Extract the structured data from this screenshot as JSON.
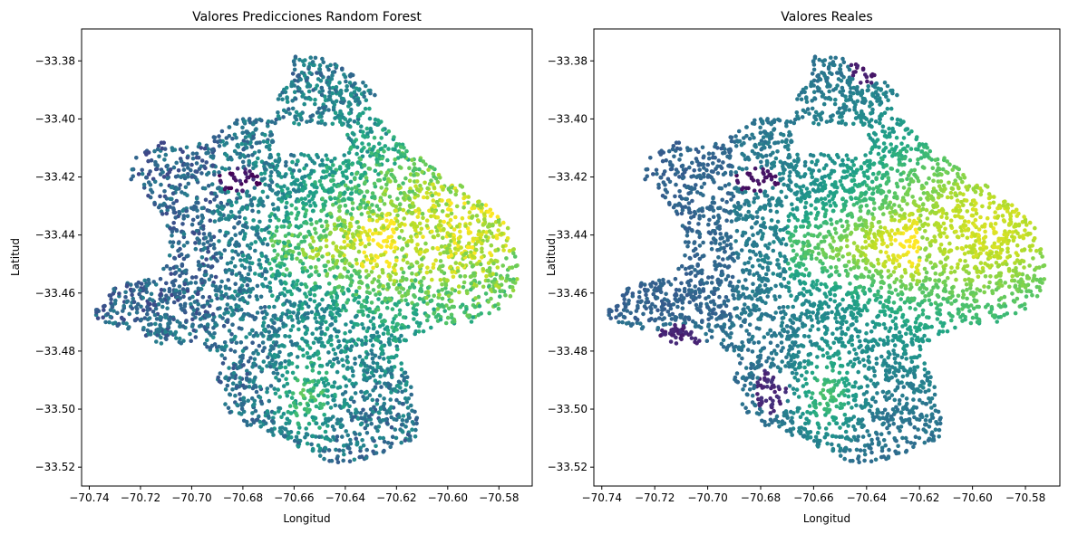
{
  "chart_data": [
    {
      "type": "scatter",
      "title": "Valores Predicciones Random Forest",
      "xlabel": "Longitud",
      "ylabel": "Latitud",
      "xlim": [
        -70.743,
        -70.567
      ],
      "ylim": [
        -33.5265,
        -33.369
      ],
      "xticks": [
        -70.74,
        -70.72,
        -70.7,
        -70.68,
        -70.66,
        -70.64,
        -70.62,
        -70.6,
        -70.58
      ],
      "xtick_labels": [
        "−70.74",
        "−70.72",
        "−70.70",
        "−70.68",
        "−70.66",
        "−70.64",
        "−70.62",
        "−70.60",
        "−70.58"
      ],
      "yticks": [
        -33.38,
        -33.4,
        -33.42,
        -33.44,
        -33.46,
        -33.48,
        -33.5,
        -33.52
      ],
      "ytick_labels": [
        "−33.38",
        "−33.40",
        "−33.42",
        "−33.44",
        "−33.46",
        "−33.48",
        "−33.50",
        "−33.52"
      ],
      "colormap": "viridis",
      "grid": false
    },
    {
      "type": "scatter",
      "title": "Valores Reales",
      "xlabel": "Longitud",
      "ylabel": "Latitud",
      "xlim": [
        -70.743,
        -70.567
      ],
      "ylim": [
        -33.5265,
        -33.369
      ],
      "xticks": [
        -70.74,
        -70.72,
        -70.7,
        -70.68,
        -70.66,
        -70.64,
        -70.62,
        -70.6,
        -70.58
      ],
      "xtick_labels": [
        "−70.74",
        "−70.72",
        "−70.70",
        "−70.68",
        "−70.66",
        "−70.64",
        "−70.62",
        "−70.60",
        "−70.58"
      ],
      "yticks": [
        -33.38,
        -33.4,
        -33.42,
        -33.44,
        -33.46,
        -33.48,
        -33.5,
        -33.52
      ],
      "ytick_labels": [
        "−33.38",
        "−33.40",
        "−33.42",
        "−33.44",
        "−33.46",
        "−33.48",
        "−33.50",
        "−33.52"
      ],
      "colormap": "viridis",
      "grid": false
    }
  ]
}
